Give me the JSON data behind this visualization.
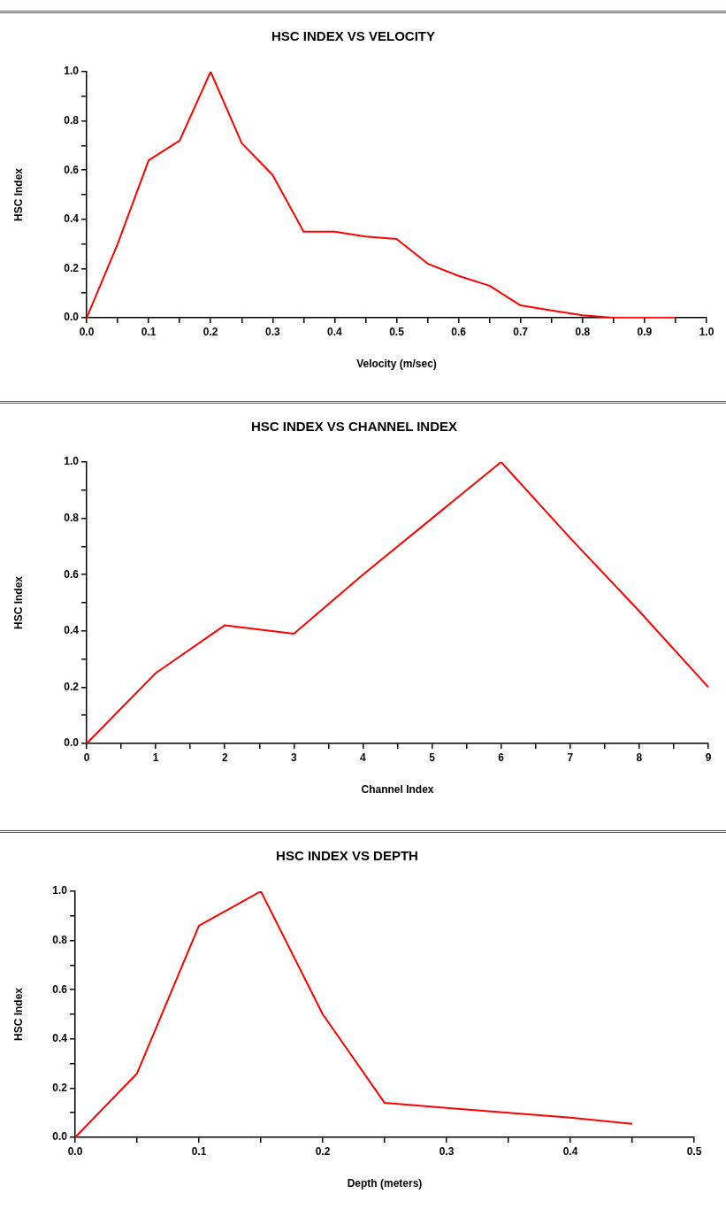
{
  "chart_data": [
    {
      "type": "line",
      "title": "HSC INDEX VS VELOCITY",
      "xlabel": "Velocity (m/sec)",
      "ylabel": "HSC Index",
      "x": [
        0,
        0.05,
        0.1,
        0.15,
        0.2,
        0.25,
        0.3,
        0.35,
        0.4,
        0.45,
        0.5,
        0.55,
        0.6,
        0.65,
        0.7,
        0.75,
        0.8,
        0.85,
        0.9,
        0.95
      ],
      "series": [
        {
          "color": "#ff0000",
          "values": [
            0,
            0.3,
            0.64,
            0.72,
            1.0,
            0.71,
            0.58,
            0.35,
            0.35,
            0.33,
            0.32,
            0.22,
            0.17,
            0.13,
            0.05,
            0.03,
            0.01,
            0,
            0,
            0
          ]
        }
      ],
      "xlim": [
        0,
        1
      ],
      "ylim": [
        0,
        1
      ],
      "xticks": [
        {
          "value": 0,
          "label": "0.0"
        },
        {
          "value": 0.05,
          "label": null
        },
        {
          "value": 0.1,
          "label": "0.1"
        },
        {
          "value": 0.15,
          "label": null
        },
        {
          "value": 0.2,
          "label": "0.2"
        },
        {
          "value": 0.25,
          "label": null
        },
        {
          "value": 0.3,
          "label": "0.3"
        },
        {
          "value": 0.35,
          "label": null
        },
        {
          "value": 0.4,
          "label": "0.4"
        },
        {
          "value": 0.45,
          "label": null
        },
        {
          "value": 0.5,
          "label": "0.5"
        },
        {
          "value": 0.55,
          "label": null
        },
        {
          "value": 0.6,
          "label": "0.6"
        },
        {
          "value": 0.65,
          "label": null
        },
        {
          "value": 0.7,
          "label": "0.7"
        },
        {
          "value": 0.75,
          "label": null
        },
        {
          "value": 0.8,
          "label": "0.8"
        },
        {
          "value": 0.85,
          "label": null
        },
        {
          "value": 0.9,
          "label": "0.9"
        },
        {
          "value": 0.95,
          "label": null
        },
        {
          "value": 1,
          "label": "1.0"
        }
      ],
      "yticks": [
        {
          "value": 0,
          "label": "0.0"
        },
        {
          "value": 0.1,
          "label": null
        },
        {
          "value": 0.2,
          "label": "0.2"
        },
        {
          "value": 0.3,
          "label": null
        },
        {
          "value": 0.4,
          "label": "0.4"
        },
        {
          "value": 0.5,
          "label": null
        },
        {
          "value": 0.6,
          "label": "0.6"
        },
        {
          "value": 0.7,
          "label": null
        },
        {
          "value": 0.8,
          "label": "0.8"
        },
        {
          "value": 0.9,
          "label": null
        },
        {
          "value": 1,
          "label": "1.0"
        }
      ],
      "marker": "none",
      "grid": false,
      "legend": false
    },
    {
      "type": "line",
      "title": "HSC INDEX VS CHANNEL INDEX",
      "xlabel": "Channel Index",
      "ylabel": "HSC Index",
      "x": [
        0,
        1,
        2,
        3,
        4,
        5,
        6,
        7,
        8,
        9
      ],
      "series": [
        {
          "color": "#ff0000",
          "values": [
            0,
            0.25,
            0.42,
            0.39,
            0.6,
            0.8,
            1.0,
            0.73,
            0.47,
            0.2
          ]
        }
      ],
      "xlim": [
        0,
        9
      ],
      "ylim": [
        0,
        1
      ],
      "xticks": [
        0,
        {
          "value": 0.5,
          "label": null
        },
        1,
        {
          "value": 1.5,
          "label": null
        },
        2,
        {
          "value": 2.5,
          "label": null
        },
        3,
        {
          "value": 3.5,
          "label": null
        },
        4,
        {
          "value": 4.5,
          "label": null
        },
        5,
        {
          "value": 5.5,
          "label": null
        },
        6,
        {
          "value": 6.5,
          "label": null
        },
        7,
        {
          "value": 7.5,
          "label": null
        },
        8,
        {
          "value": 8.5,
          "label": null
        },
        9
      ],
      "yticks": [
        {
          "value": 0,
          "label": "0.0"
        },
        {
          "value": 0.1,
          "label": null
        },
        {
          "value": 0.2,
          "label": "0.2"
        },
        {
          "value": 0.3,
          "label": null
        },
        {
          "value": 0.4,
          "label": "0.4"
        },
        {
          "value": 0.5,
          "label": null
        },
        {
          "value": 0.6,
          "label": "0.6"
        },
        {
          "value": 0.7,
          "label": null
        },
        {
          "value": 0.8,
          "label": "0.8"
        },
        {
          "value": 0.9,
          "label": null
        },
        {
          "value": 1,
          "label": "1.0"
        }
      ],
      "marker": "none",
      "grid": false,
      "legend": false
    },
    {
      "type": "line",
      "title": "HSC INDEX VS DEPTH",
      "xlabel": "Depth (meters)",
      "ylabel": "HSC Index",
      "x": [
        0,
        0.05,
        0.1,
        0.15,
        0.2,
        0.25,
        0.3,
        0.35,
        0.4,
        0.45
      ],
      "series": [
        {
          "color": "#ff0000",
          "values": [
            0,
            0.26,
            0.86,
            1.0,
            0.5,
            0.14,
            0.12,
            0.1,
            0.08,
            0.055
          ]
        }
      ],
      "xlim": [
        0,
        0.5
      ],
      "ylim": [
        0,
        1
      ],
      "xticks": [
        {
          "value": 0,
          "label": "0.0"
        },
        {
          "value": 0.05,
          "label": null
        },
        {
          "value": 0.1,
          "label": "0.1"
        },
        {
          "value": 0.15,
          "label": null
        },
        {
          "value": 0.2,
          "label": "0.2"
        },
        {
          "value": 0.25,
          "label": null
        },
        {
          "value": 0.3,
          "label": "0.3"
        },
        {
          "value": 0.35,
          "label": null
        },
        {
          "value": 0.4,
          "label": "0.4"
        },
        {
          "value": 0.45,
          "label": null
        },
        {
          "value": 0.5,
          "label": "0.5"
        }
      ],
      "yticks": [
        {
          "value": 0,
          "label": "0.0"
        },
        {
          "value": 0.1,
          "label": null
        },
        {
          "value": 0.2,
          "label": "0.2"
        },
        {
          "value": 0.3,
          "label": null
        },
        {
          "value": 0.4,
          "label": "0.4"
        },
        {
          "value": 0.5,
          "label": null
        },
        {
          "value": 0.6,
          "label": "0.6"
        },
        {
          "value": 0.7,
          "label": null
        },
        {
          "value": 0.8,
          "label": "0.8"
        },
        {
          "value": 0.9,
          "label": null
        },
        {
          "value": 1,
          "label": "1.0"
        }
      ],
      "marker": "none",
      "grid": false,
      "legend": false
    }
  ]
}
